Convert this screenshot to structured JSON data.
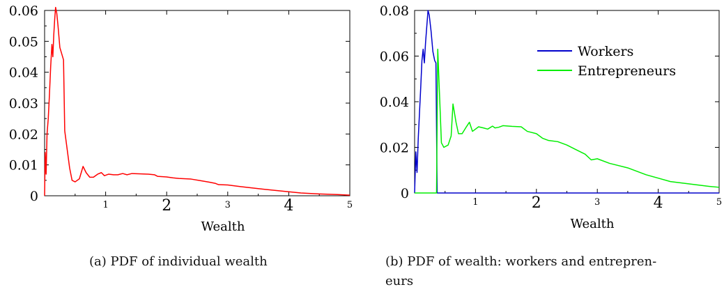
{
  "chart_data": [
    {
      "type": "line",
      "xlabel": "Wealth",
      "ylabel": "",
      "xlim": [
        0,
        5
      ],
      "ylim": [
        0,
        0.06
      ],
      "x_ticks": [
        "1",
        "2",
        "3",
        "4",
        "5"
      ],
      "y_ticks": [
        "0",
        "0.01",
        "0.02",
        "0.03",
        "0.04",
        "0.05",
        "0.06"
      ],
      "grid": false,
      "caption": "(a) PDF of individual wealth",
      "series": [
        {
          "color": "#ff0000",
          "points": [
            [
              0.0,
              0.0
            ],
            [
              0.01,
              0.014
            ],
            [
              0.025,
              0.007
            ],
            [
              0.04,
              0.02
            ],
            [
              0.06,
              0.025
            ],
            [
              0.08,
              0.033
            ],
            [
              0.1,
              0.042
            ],
            [
              0.12,
              0.049
            ],
            [
              0.135,
              0.045
            ],
            [
              0.15,
              0.052
            ],
            [
              0.165,
              0.057
            ],
            [
              0.18,
              0.061
            ],
            [
              0.2,
              0.059
            ],
            [
              0.22,
              0.055
            ],
            [
              0.25,
              0.048
            ],
            [
              0.28,
              0.046
            ],
            [
              0.31,
              0.044
            ],
            [
              0.33,
              0.021
            ],
            [
              0.37,
              0.015
            ],
            [
              0.41,
              0.009
            ],
            [
              0.45,
              0.005
            ],
            [
              0.5,
              0.0045
            ],
            [
              0.57,
              0.0055
            ],
            [
              0.63,
              0.0095
            ],
            [
              0.68,
              0.0075
            ],
            [
              0.74,
              0.006
            ],
            [
              0.8,
              0.006
            ],
            [
              0.87,
              0.007
            ],
            [
              0.93,
              0.0075
            ],
            [
              0.98,
              0.0065
            ],
            [
              1.05,
              0.007
            ],
            [
              1.13,
              0.0068
            ],
            [
              1.2,
              0.0068
            ],
            [
              1.28,
              0.0072
            ],
            [
              1.35,
              0.0068
            ],
            [
              1.43,
              0.0072
            ],
            [
              1.55,
              0.0071
            ],
            [
              1.7,
              0.007
            ],
            [
              1.8,
              0.0068
            ],
            [
              1.85,
              0.0063
            ],
            [
              2.0,
              0.0061
            ],
            [
              2.1,
              0.0058
            ],
            [
              2.2,
              0.0056
            ],
            [
              2.4,
              0.0054
            ],
            [
              2.55,
              0.0049
            ],
            [
              2.7,
              0.0044
            ],
            [
              2.8,
              0.004
            ],
            [
              2.85,
              0.0036
            ],
            [
              3.0,
              0.0035
            ],
            [
              3.2,
              0.003
            ],
            [
              3.5,
              0.0023
            ],
            [
              3.8,
              0.0017
            ],
            [
              4.0,
              0.0013
            ],
            [
              4.2,
              0.0009
            ],
            [
              4.5,
              0.0006
            ],
            [
              4.8,
              0.0004
            ],
            [
              5.0,
              0.0002
            ]
          ]
        }
      ]
    },
    {
      "type": "line",
      "xlabel": "Wealth",
      "ylabel": "",
      "xlim": [
        0,
        5
      ],
      "ylim": [
        0,
        0.08
      ],
      "x_ticks": [
        "1",
        "2",
        "3",
        "4",
        "5"
      ],
      "y_ticks": [
        "0",
        "0.02",
        "0.04",
        "0.06",
        "0.08"
      ],
      "grid": false,
      "legend_position": "top-right",
      "caption_lines": [
        "(b) PDF of wealth: workers and entrepren-",
        "eurs"
      ],
      "series": [
        {
          "name": "Workers",
          "color": "#0000cc",
          "points": [
            [
              0.0,
              0.0
            ],
            [
              0.02,
              0.018
            ],
            [
              0.04,
              0.009
            ],
            [
              0.06,
              0.024
            ],
            [
              0.08,
              0.035
            ],
            [
              0.1,
              0.046
            ],
            [
              0.12,
              0.058
            ],
            [
              0.14,
              0.063
            ],
            [
              0.16,
              0.057
            ],
            [
              0.18,
              0.066
            ],
            [
              0.2,
              0.073
            ],
            [
              0.22,
              0.08
            ],
            [
              0.24,
              0.078
            ],
            [
              0.27,
              0.071
            ],
            [
              0.3,
              0.062
            ],
            [
              0.33,
              0.058
            ],
            [
              0.35,
              0.057
            ],
            [
              0.37,
              0.0
            ],
            [
              0.6,
              0.0
            ],
            [
              1.0,
              0.0
            ],
            [
              2.0,
              0.0
            ],
            [
              3.0,
              0.0
            ],
            [
              4.0,
              0.0
            ],
            [
              5.0,
              0.0
            ]
          ]
        },
        {
          "name": "Entrepreneurs",
          "color": "#00ee00",
          "points": [
            [
              0.0,
              0.0
            ],
            [
              0.32,
              0.0
            ],
            [
              0.36,
              0.0
            ],
            [
              0.38,
              0.063
            ],
            [
              0.44,
              0.022
            ],
            [
              0.48,
              0.02
            ],
            [
              0.55,
              0.021
            ],
            [
              0.6,
              0.025
            ],
            [
              0.63,
              0.039
            ],
            [
              0.68,
              0.031
            ],
            [
              0.72,
              0.026
            ],
            [
              0.78,
              0.026
            ],
            [
              0.85,
              0.029
            ],
            [
              0.9,
              0.031
            ],
            [
              0.95,
              0.027
            ],
            [
              1.0,
              0.028
            ],
            [
              1.05,
              0.029
            ],
            [
              1.13,
              0.0285
            ],
            [
              1.2,
              0.028
            ],
            [
              1.28,
              0.0293
            ],
            [
              1.32,
              0.0285
            ],
            [
              1.38,
              0.0288
            ],
            [
              1.45,
              0.0295
            ],
            [
              1.6,
              0.0292
            ],
            [
              1.75,
              0.029
            ],
            [
              1.85,
              0.027
            ],
            [
              2.0,
              0.026
            ],
            [
              2.1,
              0.024
            ],
            [
              2.2,
              0.023
            ],
            [
              2.35,
              0.0225
            ],
            [
              2.5,
              0.021
            ],
            [
              2.65,
              0.019
            ],
            [
              2.8,
              0.017
            ],
            [
              2.9,
              0.0145
            ],
            [
              3.0,
              0.015
            ],
            [
              3.2,
              0.013
            ],
            [
              3.5,
              0.011
            ],
            [
              3.8,
              0.008
            ],
            [
              4.0,
              0.0065
            ],
            [
              4.2,
              0.005
            ],
            [
              4.5,
              0.004
            ],
            [
              4.8,
              0.003
            ],
            [
              5.0,
              0.0025
            ]
          ]
        }
      ]
    }
  ]
}
